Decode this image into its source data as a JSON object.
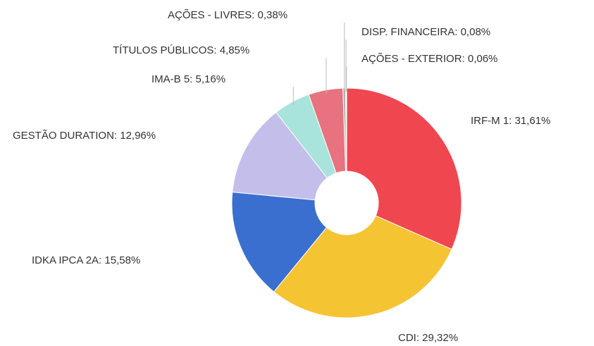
{
  "chart_data": {
    "type": "pie",
    "labels": [
      "IRF-M 1: 31,61%",
      "CDI: 29,32%",
      "IDKA IPCA 2A: 15,58%",
      "GESTÃO DURATION: 12,96%",
      "IMA-B 5: 5,16%",
      "TÍTULOS PÚBLICOS: 4,85%",
      "AÇÕES - LIVRES: 0,38%",
      "DISP. FINANCEIRA: 0,08%",
      "AÇÕES - EXTERIOR: 0,06%"
    ],
    "values": [
      31.61,
      29.32,
      15.58,
      12.96,
      5.16,
      4.85,
      0.38,
      0.08,
      0.06
    ],
    "colors": [
      "#f0464f",
      "#f5c433",
      "#3a6fd0",
      "#c4bfea",
      "#a8e4dc",
      "#e8727f",
      "#b0b0b0",
      "#909090",
      "#c8c8c8"
    ]
  }
}
